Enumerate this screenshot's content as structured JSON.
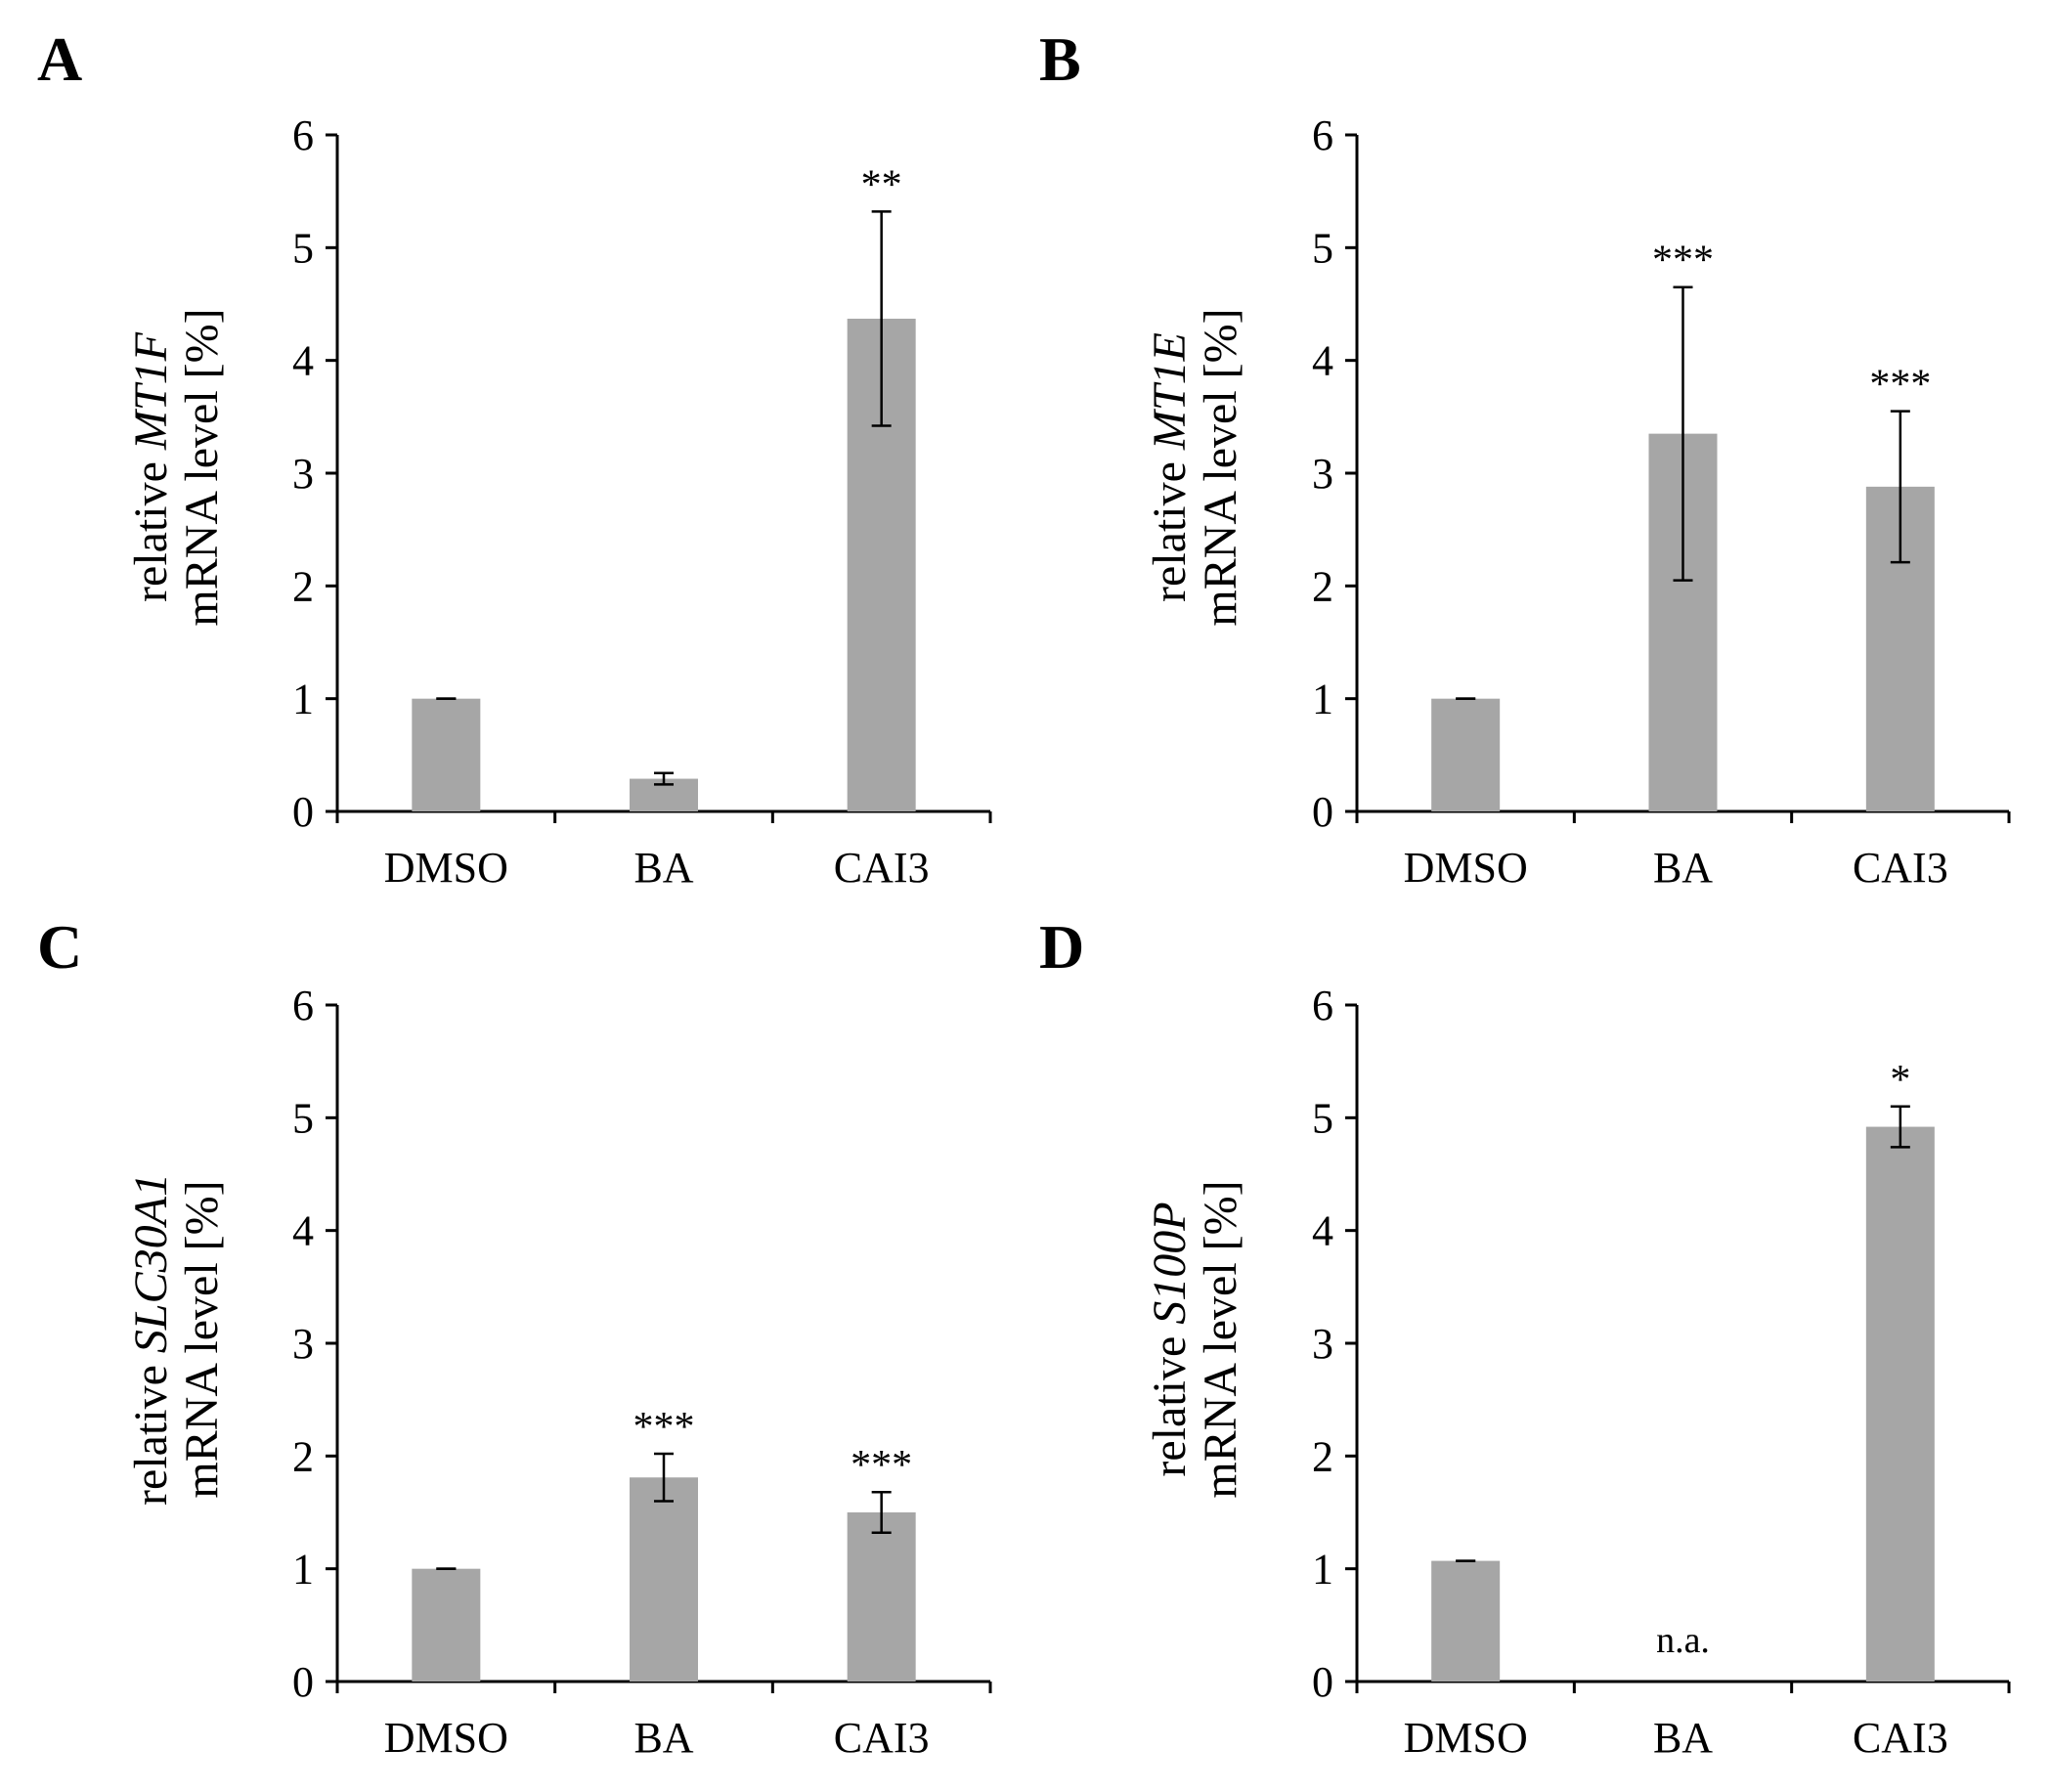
{
  "chart_data": [
    {
      "panel": "A",
      "type": "bar",
      "categories": [
        "DMSO",
        "BA",
        "CAI3"
      ],
      "values": [
        1.0,
        0.29,
        4.37
      ],
      "errors": [
        0.0,
        0.05,
        0.95
      ],
      "significance": [
        "",
        "",
        "**"
      ],
      "ylim": [
        0,
        6
      ],
      "yticks": [
        "0",
        "1",
        "2",
        "3",
        "4",
        "5",
        "6"
      ],
      "ylabel_line1_prefix": "relative ",
      "ylabel_gene": "MT1F",
      "ylabel_line2": "mRNA level [%]",
      "bar_color": "#a6a6a6"
    },
    {
      "panel": "B",
      "type": "bar",
      "categories": [
        "DMSO",
        "BA",
        "CAI3"
      ],
      "values": [
        1.0,
        3.35,
        2.88
      ],
      "errors": [
        0.0,
        1.3,
        0.67
      ],
      "significance": [
        "",
        "***",
        "***"
      ],
      "ylim": [
        0,
        6
      ],
      "yticks": [
        "0",
        "1",
        "2",
        "3",
        "4",
        "5",
        "6"
      ],
      "ylabel_line1_prefix": "relative ",
      "ylabel_gene": "MT1E",
      "ylabel_line2": "mRNA level [%]",
      "bar_color": "#a6a6a6"
    },
    {
      "panel": "C",
      "type": "bar",
      "categories": [
        "DMSO",
        "BA",
        "CAI3"
      ],
      "values": [
        1.0,
        1.81,
        1.5
      ],
      "errors": [
        0.0,
        0.21,
        0.18
      ],
      "significance": [
        "",
        "***",
        "***"
      ],
      "ylim": [
        0,
        6
      ],
      "yticks": [
        "0",
        "1",
        "2",
        "3",
        "4",
        "5",
        "6"
      ],
      "ylabel_line1_prefix": "relative ",
      "ylabel_gene": "SLC30A1",
      "ylabel_line2": "mRNA level [%]",
      "bar_color": "#a6a6a6"
    },
    {
      "panel": "D",
      "type": "bar",
      "categories": [
        "DMSO",
        "BA",
        "CAI3"
      ],
      "values": [
        1.07,
        null,
        4.92
      ],
      "errors": [
        0.0,
        null,
        0.18
      ],
      "significance": [
        "",
        "",
        "*"
      ],
      "na_label": "n.a.",
      "ylim": [
        0,
        6
      ],
      "yticks": [
        "0",
        "1",
        "2",
        "3",
        "4",
        "5",
        "6"
      ],
      "ylabel_line1_prefix": "relative ",
      "ylabel_gene": "S100P",
      "ylabel_line2": "mRNA level [%]",
      "bar_color": "#a6a6a6"
    }
  ]
}
